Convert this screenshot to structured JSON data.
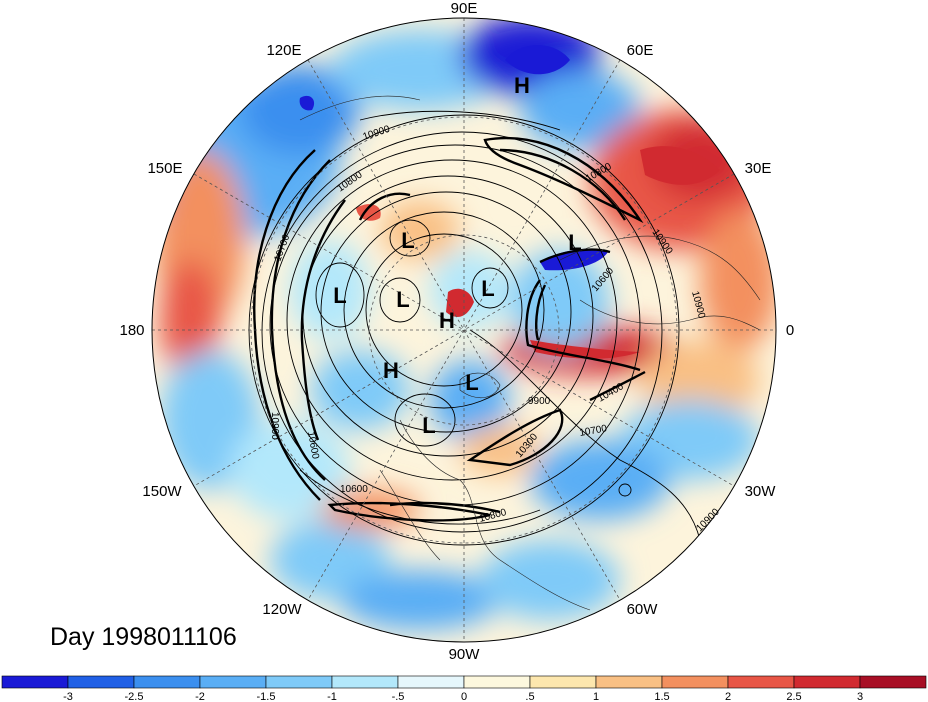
{
  "title": "Day 1998011106",
  "projection": "north polar stereographic",
  "longitude_labels": [
    "90E",
    "60E",
    "30E",
    "0",
    "30W",
    "60W",
    "90W",
    "120W",
    "150W",
    "180",
    "150E",
    "120E"
  ],
  "contour_labels": [
    "10900",
    "10800",
    "10700",
    "10600",
    "10400",
    "10300",
    "10800",
    "9900",
    "10700",
    "10900",
    "10600",
    "10800",
    "10900",
    "10900",
    "10600",
    "10900"
  ],
  "centers": [
    {
      "type": "H",
      "label": "H"
    },
    {
      "type": "L",
      "label": "L"
    },
    {
      "type": "L",
      "label": "L"
    },
    {
      "type": "L",
      "label": "L"
    },
    {
      "type": "L",
      "label": "L"
    },
    {
      "type": "L",
      "label": "L"
    },
    {
      "type": "H",
      "label": "H"
    },
    {
      "type": "H",
      "label": "H"
    },
    {
      "type": "L",
      "label": "L"
    },
    {
      "type": "L",
      "label": "L"
    }
  ],
  "colorbar": {
    "tick_labels": [
      "-3",
      "-2.5",
      "-2",
      "-1.5",
      "-1",
      "-.5",
      "0",
      ".5",
      "1",
      "1.5",
      "2",
      "2.5",
      "3"
    ],
    "colors": [
      "#1a1ad6",
      "#2060e6",
      "#3b8fef",
      "#5aaef5",
      "#7fcaf8",
      "#b3e8fb",
      "#e6f7fc",
      "#fdf8de",
      "#fde7ae",
      "#f9c084",
      "#f3905f",
      "#e85646",
      "#d12a30",
      "#a80f25"
    ]
  }
}
